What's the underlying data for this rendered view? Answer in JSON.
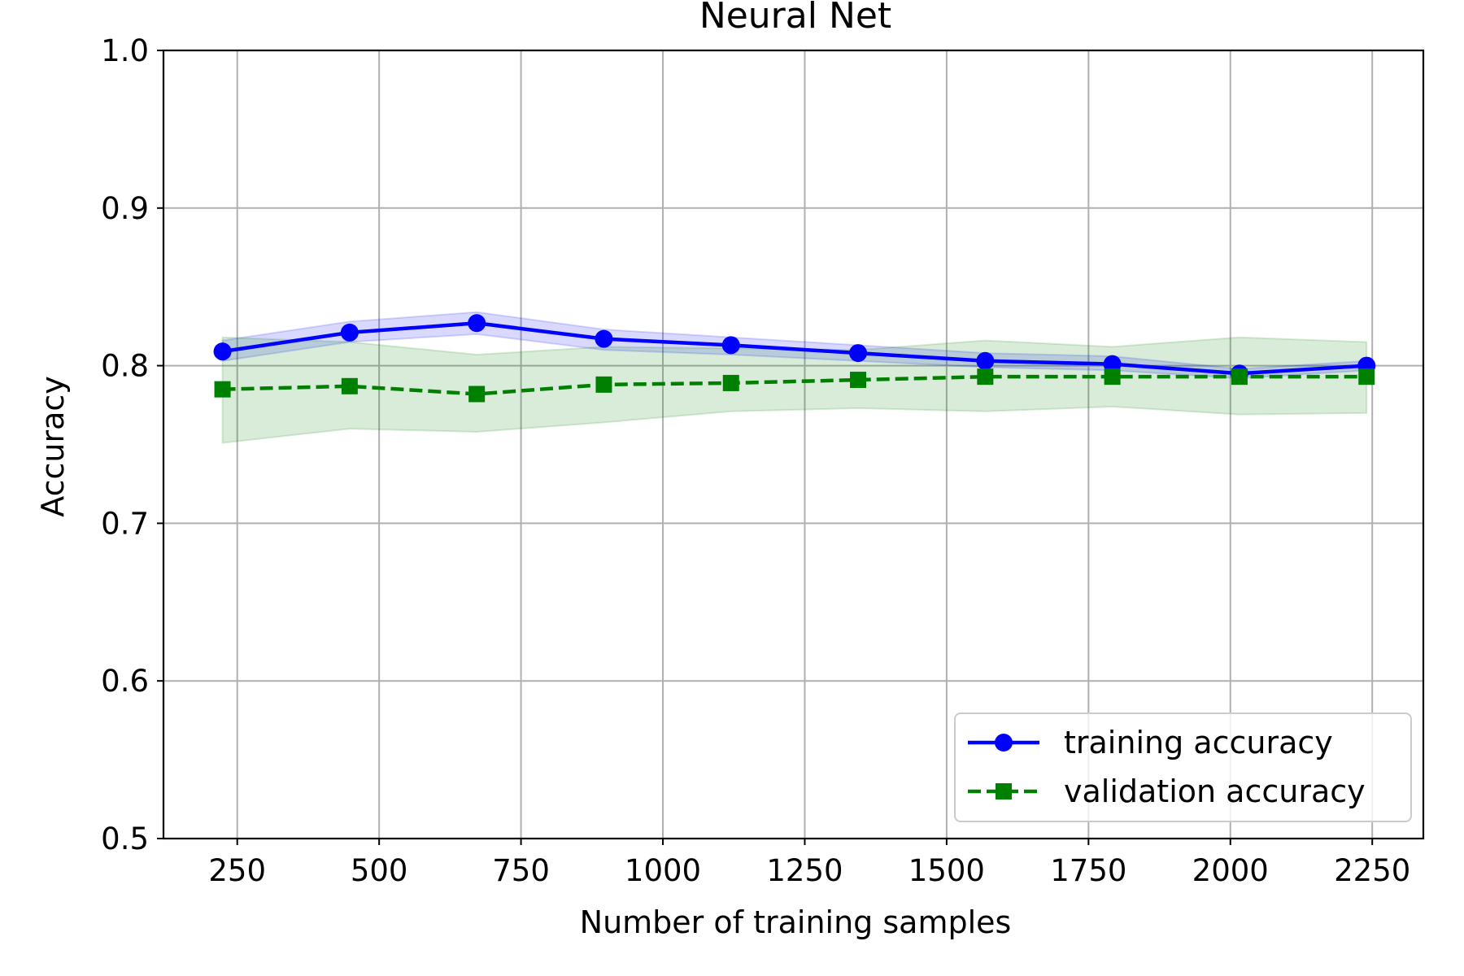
{
  "chart_data": {
    "type": "line",
    "title": "Neural Net",
    "xlabel": "Number of training samples",
    "ylabel": "Accuracy",
    "xlim": [
      120,
      2340
    ],
    "ylim": [
      0.5,
      1.0
    ],
    "xticks": [
      250,
      500,
      750,
      1000,
      1250,
      1500,
      1750,
      2000,
      2250
    ],
    "yticks": [
      0.5,
      0.6,
      0.7,
      0.8,
      0.9,
      1.0
    ],
    "grid": true,
    "legend_position": "lower right",
    "x": [
      224,
      448,
      672,
      896,
      1120,
      1344,
      1568,
      1792,
      2016,
      2240
    ],
    "series": [
      {
        "name": "training accuracy",
        "color": "#0000ff",
        "marker": "circle",
        "linestyle": "solid",
        "values": [
          0.809,
          0.821,
          0.827,
          0.817,
          0.813,
          0.808,
          0.803,
          0.801,
          0.795,
          0.8
        ],
        "band_lower": [
          0.803,
          0.815,
          0.82,
          0.81,
          0.807,
          0.803,
          0.799,
          0.797,
          0.792,
          0.797
        ],
        "band_upper": [
          0.816,
          0.828,
          0.834,
          0.823,
          0.818,
          0.813,
          0.808,
          0.806,
          0.798,
          0.803
        ],
        "band_color": "#0000ff"
      },
      {
        "name": "validation accuracy",
        "color": "#008000",
        "marker": "square",
        "linestyle": "dashed",
        "values": [
          0.785,
          0.787,
          0.782,
          0.788,
          0.789,
          0.791,
          0.793,
          0.793,
          0.793,
          0.793
        ],
        "band_lower": [
          0.751,
          0.76,
          0.758,
          0.764,
          0.771,
          0.773,
          0.771,
          0.774,
          0.769,
          0.77
        ],
        "band_upper": [
          0.818,
          0.815,
          0.807,
          0.812,
          0.811,
          0.81,
          0.816,
          0.812,
          0.818,
          0.815
        ],
        "band_color": "#008000"
      }
    ]
  }
}
